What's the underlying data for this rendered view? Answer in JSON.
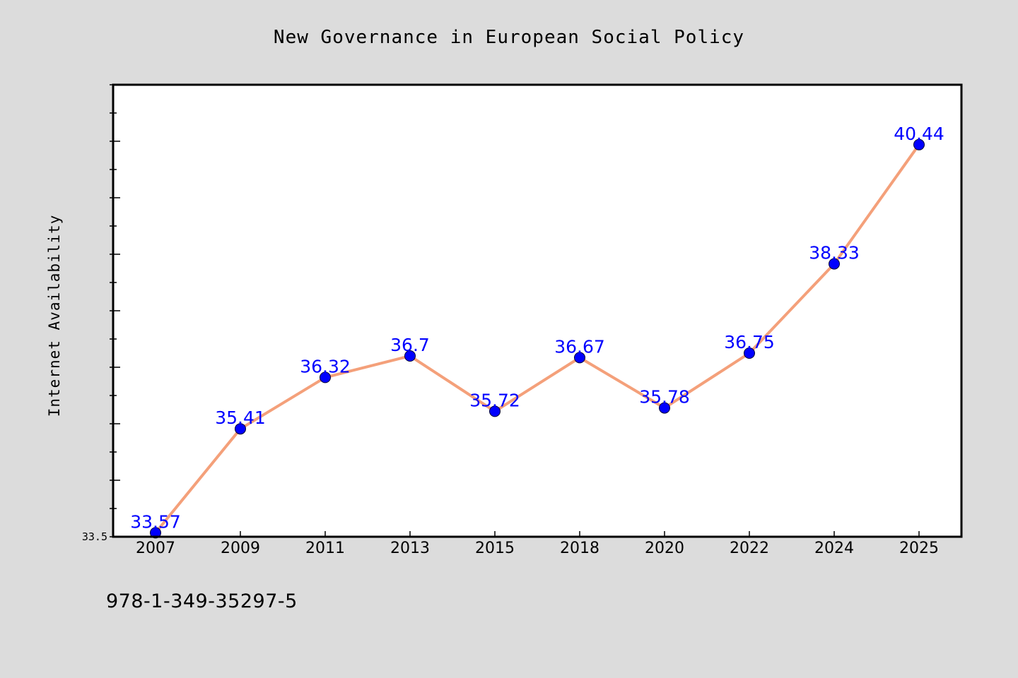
{
  "chart_data": {
    "type": "line",
    "title": "New Governance in European Social Policy",
    "xlabel": "",
    "ylabel": "Internet Availability",
    "categories": [
      "2007",
      "2009",
      "2011",
      "2013",
      "2015",
      "2018",
      "2020",
      "2022",
      "2024",
      "2025"
    ],
    "series": [
      {
        "values": [
          33.57,
          35.41,
          36.32,
          36.7,
          35.72,
          36.67,
          35.78,
          36.75,
          38.33,
          40.44
        ]
      }
    ],
    "data_labels": [
      "33.57",
      "35.41",
      "36.32",
      "36.7",
      "35.72",
      "36.67",
      "35.78",
      "36.75",
      "38.33",
      "40.44"
    ],
    "y_tick_labels": [
      "33.5"
    ],
    "ylim": [
      33.5,
      41.5
    ],
    "grid": false,
    "colors": {
      "line": "#f4a07a",
      "marker": "#0000ff",
      "data_label": "#0000ff",
      "plot_background": "#ffffff",
      "figure_background": "#dcdcdc"
    }
  },
  "footer": {
    "isbn": "978-1-349-35297-5"
  }
}
